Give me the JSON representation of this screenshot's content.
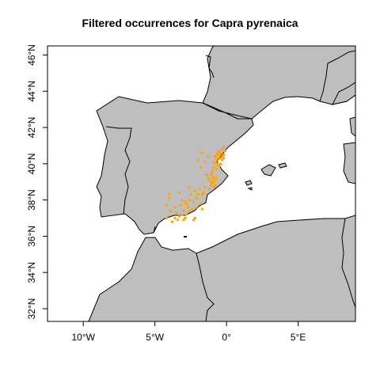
{
  "title": "Filtered occurrences for Capra pyrenaica",
  "map": {
    "type": "occurrence-map",
    "xlim": [
      -12.5,
      9.0
    ],
    "ylim": [
      31.3,
      46.5
    ],
    "land_color": "#bebebe",
    "border_color": "#000000",
    "point_color": "#ffa500",
    "x_ticks": [
      {
        "value": -10,
        "label": "10°W"
      },
      {
        "value": -5,
        "label": "5°W"
      },
      {
        "value": 0,
        "label": "0°"
      },
      {
        "value": 5,
        "label": "5°E"
      }
    ],
    "y_ticks": [
      {
        "value": 32,
        "label": "32°N"
      },
      {
        "value": 34,
        "label": "34°N"
      },
      {
        "value": 36,
        "label": "36°N"
      },
      {
        "value": 38,
        "label": "38°N"
      },
      {
        "value": 40,
        "label": "40°N"
      },
      {
        "value": 42,
        "label": "42°N"
      },
      {
        "value": 44,
        "label": "44°N"
      },
      {
        "value": 46,
        "label": "46°N"
      }
    ],
    "points": [
      [
        -0.3,
        40.8
      ],
      [
        -0.2,
        40.9
      ],
      [
        -0.1,
        40.7
      ],
      [
        -0.4,
        40.6
      ],
      [
        -0.5,
        40.5
      ],
      [
        -0.2,
        40.5
      ],
      [
        -0.6,
        40.3
      ],
      [
        -0.7,
        40.2
      ],
      [
        -0.4,
        40.3
      ],
      [
        -0.3,
        40.2
      ],
      [
        -0.8,
        40.0
      ],
      [
        -0.6,
        40.0
      ],
      [
        -0.5,
        39.9
      ],
      [
        -0.9,
        39.8
      ],
      [
        -0.7,
        39.7
      ],
      [
        -1.0,
        39.6
      ],
      [
        -0.3,
        40.4
      ],
      [
        -0.5,
        40.7
      ],
      [
        -0.8,
        40.4
      ],
      [
        -0.9,
        40.1
      ],
      [
        -0.6,
        40.6
      ],
      [
        -0.4,
        40.0
      ],
      [
        -0.2,
        40.3
      ],
      [
        -0.7,
        40.5
      ],
      [
        -1.3,
        40.4
      ],
      [
        -1.5,
        40.1
      ],
      [
        -1.7,
        40.6
      ],
      [
        -1.8,
        39.8
      ],
      [
        -2.0,
        40.2
      ],
      [
        -0.9,
        39.3
      ],
      [
        -1.0,
        39.2
      ],
      [
        -1.1,
        39.4
      ],
      [
        -0.8,
        39.1
      ],
      [
        -0.9,
        39.0
      ],
      [
        -1.2,
        39.1
      ],
      [
        -1.0,
        38.9
      ],
      [
        -1.1,
        38.8
      ],
      [
        -0.7,
        39.2
      ],
      [
        -0.9,
        38.7
      ],
      [
        -1.2,
        38.6
      ],
      [
        -1.3,
        39.2
      ],
      [
        -1.4,
        39.4
      ],
      [
        -1.0,
        39.5
      ],
      [
        -0.8,
        38.8
      ],
      [
        -1.1,
        39.0
      ],
      [
        -1.5,
        38.7
      ],
      [
        -1.6,
        38.4
      ],
      [
        -1.7,
        38.3
      ],
      [
        -1.9,
        38.6
      ],
      [
        -2.0,
        38.3
      ],
      [
        -2.2,
        38.5
      ],
      [
        -2.1,
        38.1
      ],
      [
        -2.3,
        37.9
      ],
      [
        -2.5,
        38.3
      ],
      [
        -2.6,
        38.0
      ],
      [
        -2.8,
        37.8
      ],
      [
        -2.7,
        37.6
      ],
      [
        -2.9,
        37.9
      ],
      [
        -3.0,
        37.4
      ],
      [
        -3.2,
        37.7
      ],
      [
        -3.1,
        37.2
      ],
      [
        -3.3,
        37.1
      ],
      [
        -3.5,
        37.3
      ],
      [
        -3.4,
        36.9
      ],
      [
        -3.6,
        37.0
      ],
      [
        -3.0,
        36.9
      ],
      [
        -2.8,
        37.2
      ],
      [
        -2.6,
        37.4
      ],
      [
        -3.8,
        36.8
      ],
      [
        -2.2,
        37.0
      ],
      [
        -2.4,
        37.5
      ],
      [
        -1.8,
        37.8
      ],
      [
        -2.1,
        37.6
      ],
      [
        -3.9,
        37.4
      ],
      [
        -4.2,
        37.0
      ],
      [
        -4.0,
        38.1
      ],
      [
        -4.0,
        38.3
      ],
      [
        -4.2,
        37.7
      ],
      [
        -2.6,
        38.7
      ],
      [
        -3.3,
        38.4
      ],
      [
        -3.1,
        38.0
      ],
      [
        -1.7,
        37.5
      ],
      [
        -2.3,
        36.9
      ],
      [
        -3.6,
        37.6
      ],
      [
        -2.9,
        37.0
      ]
    ]
  }
}
